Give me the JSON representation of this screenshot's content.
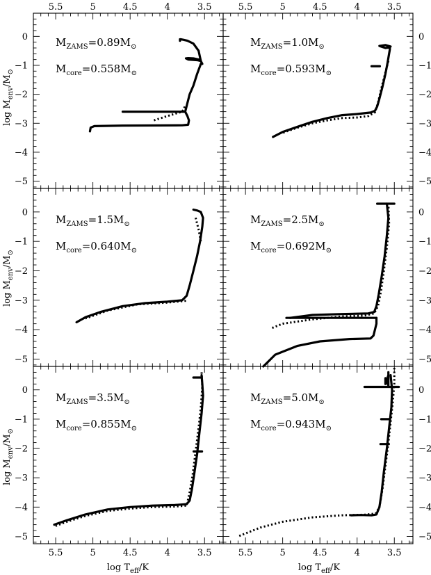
{
  "figure": {
    "xlabel_main": "log T",
    "xlabel_sub": "eff",
    "xlabel_tail": "/K",
    "ylabel_main": "log M",
    "ylabel_sub": "env",
    "ylabel_tail": "/M",
    "ylabel_sun": "⊙"
  },
  "chart_data": {
    "type": "line",
    "x_axis": {
      "quantity": "log Teff",
      "xlim": [
        5.8,
        3.25
      ],
      "reversed": true,
      "ticks": [
        5.5,
        5,
        4.5,
        4,
        3.5
      ],
      "tick_labels": [
        "5.5",
        "5",
        "4.5",
        "4",
        "3.5"
      ]
    },
    "y_axis": {
      "quantity": "log Menv/Msun",
      "ylim": [
        -5.25,
        0.8
      ],
      "ticks": [
        0,
        -1,
        -2,
        -3,
        -4,
        -5
      ],
      "tick_labels": [
        "0",
        "−1",
        "−2",
        "−3",
        "−4",
        "−5"
      ]
    },
    "panels": [
      {
        "id": "p1",
        "label_zams": "M",
        "label_zams_sub": "ZAMS",
        "value_zams": "=0.89M",
        "label_core": "M",
        "label_core_sub": "core",
        "value_core": "=0.558M",
        "sun": "⊙",
        "solid": [
          [
            [
              3.55,
              -0.85
            ],
            [
              3.58,
              -0.5
            ],
            [
              3.65,
              -0.25
            ],
            [
              3.73,
              -0.15
            ],
            [
              3.78,
              -0.12
            ],
            [
              3.82,
              -0.1
            ],
            [
              3.83,
              -0.1
            ],
            [
              3.83,
              -0.15
            ]
          ],
          [
            [
              3.55,
              -0.85
            ],
            [
              3.58,
              -0.8
            ],
            [
              3.65,
              -0.76
            ],
            [
              3.72,
              -0.75
            ],
            [
              3.75,
              -0.76
            ],
            [
              3.72,
              -0.8
            ],
            [
              3.6,
              -0.82
            ],
            [
              3.55,
              -0.85
            ],
            [
              3.53,
              -0.95
            ]
          ],
          [
            [
              3.55,
              -0.95
            ],
            [
              3.6,
              -1.3
            ],
            [
              3.65,
              -1.7
            ],
            [
              3.7,
              -2.0
            ],
            [
              3.73,
              -2.3
            ],
            [
              3.75,
              -2.5
            ],
            [
              3.76,
              -2.6
            ],
            [
              4.6,
              -2.6
            ]
          ],
          [
            [
              3.76,
              -2.6
            ],
            [
              3.73,
              -2.75
            ],
            [
              3.71,
              -2.9
            ],
            [
              3.72,
              -3.05
            ],
            [
              3.8,
              -3.07
            ],
            [
              4.6,
              -3.08
            ],
            [
              4.98,
              -3.1
            ],
            [
              5.03,
              -3.15
            ],
            [
              5.04,
              -3.28
            ]
          ]
        ],
        "dotted": [
          [
            [
              4.18,
              -2.9
            ],
            [
              4.0,
              -2.75
            ],
            [
              3.8,
              -2.6
            ],
            [
              3.76,
              -2.4
            ]
          ]
        ]
      },
      {
        "id": "p2",
        "label_zams": "M",
        "label_zams_sub": "ZAMS",
        "value_zams": "=1.0M",
        "label_core": "M",
        "label_core_sub": "core",
        "value_core": "=0.593M",
        "sun": "⊙",
        "solid": [
          [
            [
              3.55,
              -0.35
            ],
            [
              3.62,
              -0.3
            ],
            [
              3.7,
              -0.33
            ],
            [
              3.62,
              -0.4
            ],
            [
              3.56,
              -0.38
            ],
            [
              3.56,
              -0.45
            ],
            [
              3.57,
              -0.6
            ],
            [
              3.59,
              -0.9
            ],
            [
              3.62,
              -1.3
            ],
            [
              3.66,
              -1.75
            ],
            [
              3.7,
              -2.15
            ],
            [
              3.73,
              -2.42
            ],
            [
              3.76,
              -2.57
            ],
            [
              3.82,
              -2.63
            ],
            [
              4.0,
              -2.68
            ],
            [
              4.2,
              -2.72
            ],
            [
              4.4,
              -2.82
            ],
            [
              4.6,
              -2.95
            ],
            [
              4.8,
              -3.12
            ],
            [
              5.0,
              -3.3
            ],
            [
              5.13,
              -3.47
            ]
          ]
        ],
        "dotted": [
          [
            [
              3.58,
              -0.85
            ],
            [
              3.63,
              -1.35
            ],
            [
              3.68,
              -1.85
            ],
            [
              3.72,
              -2.3
            ],
            [
              3.76,
              -2.62
            ],
            [
              3.85,
              -2.75
            ],
            [
              4.0,
              -2.8
            ],
            [
              4.2,
              -2.82
            ],
            [
              4.4,
              -2.9
            ],
            [
              4.6,
              -3.0
            ],
            [
              4.8,
              -3.15
            ],
            [
              5.0,
              -3.33
            ]
          ]
        ],
        "marks": [
          [
            3.75,
            -1.03
          ]
        ]
      },
      {
        "id": "p3",
        "label_zams": "M",
        "label_zams_sub": "ZAMS",
        "value_zams": "=1.5M",
        "label_core": "M",
        "label_core_sub": "core",
        "value_core": "=0.640M",
        "sun": "⊙",
        "solid": [
          [
            [
              3.65,
              0.08
            ],
            [
              3.6,
              0.05
            ],
            [
              3.55,
              0.0
            ],
            [
              3.52,
              -0.2
            ],
            [
              3.53,
              -0.5
            ],
            [
              3.56,
              -1.0
            ],
            [
              3.6,
              -1.5
            ],
            [
              3.65,
              -2.0
            ],
            [
              3.7,
              -2.5
            ],
            [
              3.74,
              -2.85
            ],
            [
              3.8,
              -3.0
            ],
            [
              4.0,
              -3.05
            ],
            [
              4.3,
              -3.1
            ],
            [
              4.6,
              -3.2
            ],
            [
              4.9,
              -3.4
            ],
            [
              5.1,
              -3.58
            ],
            [
              5.22,
              -3.75
            ]
          ]
        ],
        "dotted": [
          [
            [
              3.62,
              -0.2
            ],
            [
              3.58,
              -0.6
            ],
            [
              3.55,
              -1.0
            ]
          ],
          [
            [
              3.75,
              -3.02
            ],
            [
              4.0,
              -3.08
            ],
            [
              4.4,
              -3.14
            ],
            [
              4.8,
              -3.35
            ],
            [
              5.1,
              -3.62
            ]
          ]
        ]
      },
      {
        "id": "p4",
        "label_zams": "M",
        "label_zams_sub": "ZAMS",
        "value_zams": "=2.5M",
        "label_core": "M",
        "label_core_sub": "core",
        "value_core": "=0.692M",
        "sun": "⊙",
        "solid": [
          [
            [
              3.73,
              0.28
            ],
            [
              3.5,
              0.28
            ]
          ],
          [
            [
              3.6,
              0.28
            ],
            [
              3.58,
              -0.2
            ],
            [
              3.6,
              -0.8
            ],
            [
              3.63,
              -1.5
            ],
            [
              3.67,
              -2.2
            ],
            [
              3.71,
              -2.8
            ],
            [
              3.74,
              -3.2
            ],
            [
              3.77,
              -3.4
            ],
            [
              3.85,
              -3.45
            ],
            [
              4.2,
              -3.47
            ],
            [
              4.6,
              -3.5
            ],
            [
              4.9,
              -3.6
            ]
          ],
          [
            [
              3.74,
              -3.6
            ],
            [
              4.95,
              -3.6
            ]
          ],
          [
            [
              3.74,
              -3.6
            ],
            [
              3.74,
              -3.8
            ],
            [
              3.76,
              -4.0
            ],
            [
              3.78,
              -4.2
            ],
            [
              3.82,
              -4.3
            ],
            [
              4.1,
              -4.32
            ],
            [
              4.5,
              -4.4
            ],
            [
              4.8,
              -4.55
            ],
            [
              5.1,
              -4.85
            ],
            [
              5.26,
              -5.25
            ]
          ]
        ],
        "dotted": [
          [
            [
              3.58,
              0.3
            ],
            [
              3.57,
              -0.4
            ],
            [
              3.6,
              -1.2
            ],
            [
              3.64,
              -2.0
            ],
            [
              3.68,
              -2.7
            ],
            [
              3.72,
              -3.2
            ],
            [
              3.77,
              -3.45
            ],
            [
              3.9,
              -3.52
            ],
            [
              4.2,
              -3.55
            ],
            [
              4.6,
              -3.65
            ],
            [
              5.0,
              -3.8
            ],
            [
              5.15,
              -3.95
            ]
          ]
        ]
      },
      {
        "id": "p5",
        "label_zams": "M",
        "label_zams_sub": "ZAMS",
        "value_zams": "=3.5M",
        "label_core": "M",
        "label_core_sub": "core",
        "value_core": "=0.855M",
        "sun": "⊙",
        "solid": [
          [
            [
              3.65,
              0.42
            ],
            [
              3.55,
              0.42
            ]
          ],
          [
            [
              3.54,
              0.5
            ],
            [
              3.53,
              0.2
            ],
            [
              3.52,
              -0.2
            ],
            [
              3.54,
              -0.8
            ],
            [
              3.57,
              -1.5
            ],
            [
              3.6,
              -2.2
            ],
            [
              3.64,
              -2.9
            ],
            [
              3.67,
              -3.4
            ],
            [
              3.7,
              -3.78
            ],
            [
              3.74,
              -3.9
            ],
            [
              3.9,
              -3.93
            ],
            [
              4.2,
              -3.95
            ],
            [
              4.5,
              -4.0
            ],
            [
              4.8,
              -4.08
            ],
            [
              5.1,
              -4.25
            ],
            [
              5.35,
              -4.45
            ],
            [
              5.52,
              -4.6
            ]
          ]
        ],
        "dotted": [
          [
            [
              3.54,
              0.6
            ],
            [
              3.53,
              0.1
            ],
            [
              3.55,
              -0.6
            ],
            [
              3.58,
              -1.3
            ],
            [
              3.62,
              -2.1
            ],
            [
              3.66,
              -2.9
            ],
            [
              3.7,
              -3.5
            ],
            [
              3.74,
              -3.95
            ],
            [
              3.9,
              -3.98
            ],
            [
              4.2,
              -4.0
            ],
            [
              4.5,
              -4.05
            ],
            [
              4.8,
              -4.13
            ],
            [
              5.1,
              -4.3
            ],
            [
              5.35,
              -4.5
            ],
            [
              5.52,
              -4.66
            ]
          ]
        ],
        "marks": [
          [
            3.59,
            -2.1
          ]
        ]
      },
      {
        "id": "p6",
        "label_zams": "M",
        "label_zams_sub": "ZAMS",
        "value_zams": "=5.0M",
        "label_core": "M",
        "label_core_sub": "core",
        "value_core": "=0.943M",
        "sun": "⊙",
        "solid": [
          [
            [
              3.9,
              0.1
            ],
            [
              3.44,
              0.1
            ]
          ],
          [
            [
              3.58,
              0.6
            ],
            [
              3.58,
              0.15
            ],
            [
              3.62,
              0.4
            ],
            [
              3.62,
              0.2
            ],
            [
              3.58,
              0.5
            ]
          ],
          [
            [
              3.55,
              0.5
            ],
            [
              3.53,
              0.0
            ],
            [
              3.54,
              -0.6
            ],
            [
              3.57,
              -1.3
            ],
            [
              3.6,
              -2.0
            ],
            [
              3.64,
              -2.8
            ],
            [
              3.67,
              -3.5
            ],
            [
              3.7,
              -4.0
            ],
            [
              3.74,
              -4.25
            ],
            [
              3.8,
              -4.28
            ],
            [
              3.95,
              -4.27
            ],
            [
              4.08,
              -4.28
            ]
          ]
        ],
        "dotted": [
          [
            [
              3.5,
              0.75
            ],
            [
              3.5,
              0.2
            ],
            [
              3.52,
              -0.4
            ],
            [
              3.55,
              -1.1
            ],
            [
              3.58,
              -1.8
            ],
            [
              3.62,
              -2.6
            ],
            [
              3.66,
              -3.4
            ],
            [
              3.7,
              -4.0
            ],
            [
              3.75,
              -4.22
            ],
            [
              3.9,
              -4.26
            ],
            [
              4.2,
              -4.28
            ],
            [
              4.6,
              -4.35
            ],
            [
              5.0,
              -4.5
            ],
            [
              5.3,
              -4.7
            ],
            [
              5.6,
              -5.0
            ]
          ]
        ],
        "marks": [
          [
            3.62,
            -1.0
          ],
          [
            3.63,
            -1.85
          ]
        ]
      }
    ]
  }
}
